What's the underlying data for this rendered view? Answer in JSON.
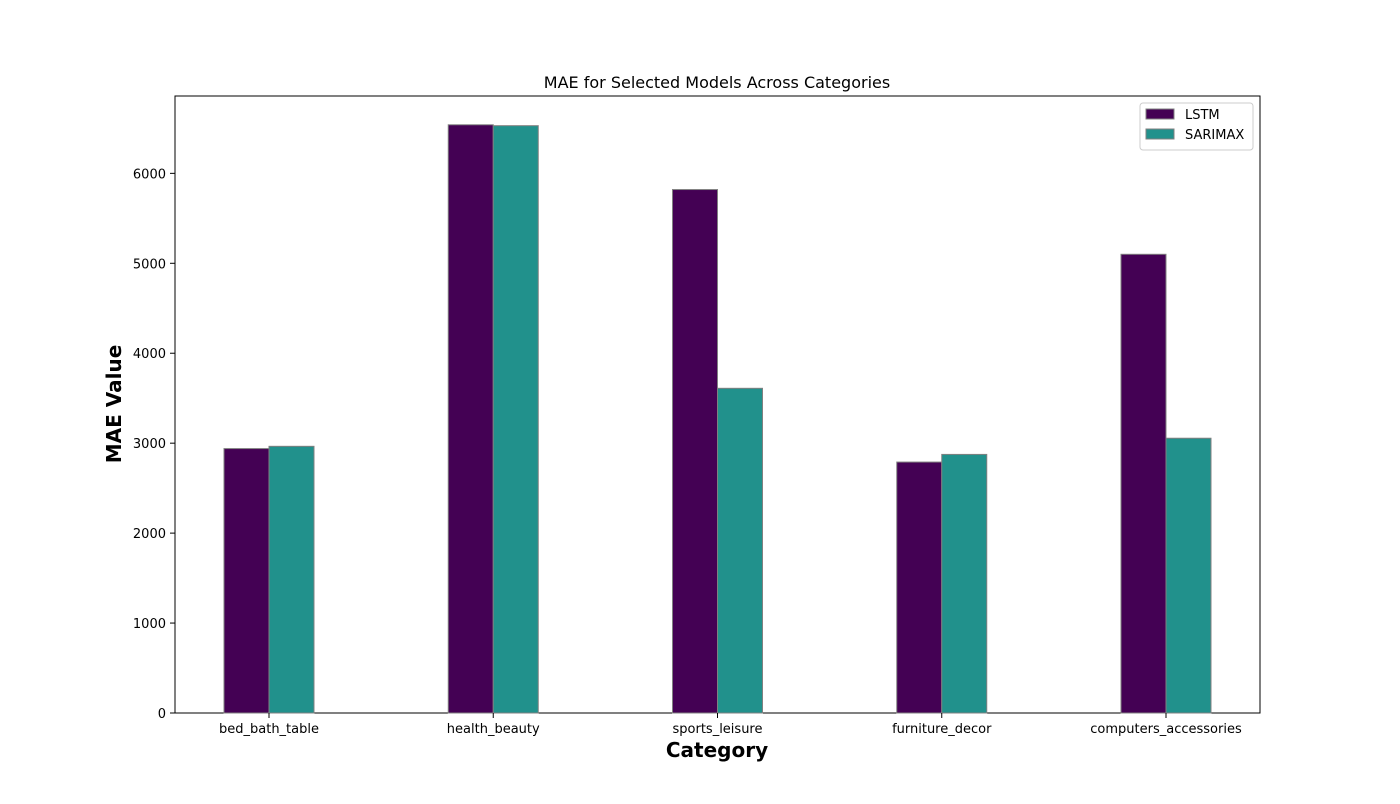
{
  "chart_data": {
    "type": "bar",
    "title": "MAE for Selected Models Across Categories",
    "xlabel": "Category",
    "ylabel": "MAE Value",
    "categories": [
      "bed_bath_table",
      "health_beauty",
      "sports_leisure",
      "furniture_decor",
      "computers_accessories"
    ],
    "series": [
      {
        "name": "LSTM",
        "color": "#440154",
        "values": [
          2940,
          6540,
          5820,
          2790,
          5100
        ]
      },
      {
        "name": "SARIMAX",
        "color": "#21918c",
        "values": [
          2965,
          6530,
          3610,
          2875,
          3055
        ]
      }
    ],
    "ylim": [
      0,
      6860
    ],
    "yticks": [
      0,
      1000,
      2000,
      3000,
      4000,
      5000,
      6000
    ],
    "grid": false,
    "legend_position": "top-right"
  }
}
